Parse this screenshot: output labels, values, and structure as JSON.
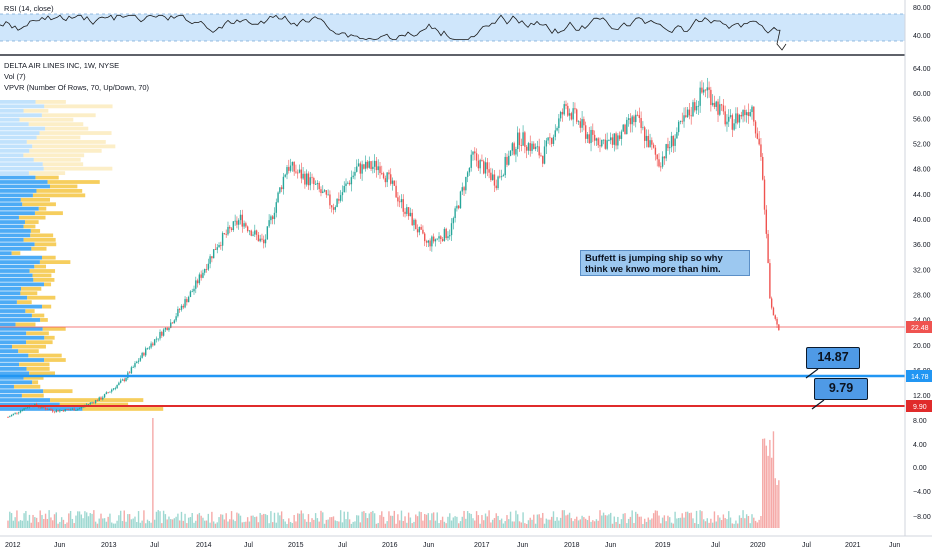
{
  "rsi_pane": {
    "label": "RSI (14, close)",
    "ticks": [
      "80.00",
      "40.00"
    ],
    "band_color": "#cfe6fb",
    "line_color": "#1a1a1a"
  },
  "price_pane": {
    "title": "DELTA AIR LINES INC, 1W, NYSE",
    "sub_label_1": "Vol (7)",
    "sub_label_2": "VPVR (Number Of Rows, 70, Up/Down, 70)",
    "ticks": [
      "64.00",
      "60.00",
      "56.00",
      "52.00",
      "48.00",
      "44.00",
      "40.00",
      "36.00",
      "32.00",
      "28.00",
      "24.00",
      "20.00",
      "16.00",
      "12.00",
      "8.00"
    ],
    "up_color": "#26a69a",
    "down_color": "#ef5350"
  },
  "volume_pane": {
    "ticks": [
      "4.00",
      "0.00",
      "−4.00",
      "−8.00"
    ]
  },
  "annotations": {
    "note": "Buffett is jumping ship so why think we knwo more than him.",
    "flag_upper": "14.87",
    "flag_lower": "9.79",
    "hline_current": "22.48",
    "hline_blue": "14.78",
    "hline_red": "9.90",
    "hline_current_color": "#ef5350",
    "hline_blue_color": "#2196f3",
    "hline_red_color": "#e02b2b"
  },
  "chart_data": {
    "type": "candlestick",
    "title": "DELTA AIR LINES INC, 1W, NYSE",
    "x_tick_labels": [
      "2012",
      "Jun",
      "2013",
      "Jul",
      "2014",
      "Jul",
      "2015",
      "Jul",
      "2016",
      "Jun",
      "2017",
      "Jun",
      "2018",
      "Jun",
      "2019",
      "Jul",
      "2020",
      "Jul",
      "2021",
      "Jun"
    ],
    "y_range": [
      6,
      68
    ],
    "price_path": [
      {
        "x": 2012.0,
        "y": 8.5
      },
      {
        "x": 2012.25,
        "y": 10.5
      },
      {
        "x": 2012.5,
        "y": 9.5
      },
      {
        "x": 2012.75,
        "y": 9.8
      },
      {
        "x": 2013.0,
        "y": 11.5
      },
      {
        "x": 2013.25,
        "y": 14.5
      },
      {
        "x": 2013.5,
        "y": 19.5
      },
      {
        "x": 2013.75,
        "y": 23.5
      },
      {
        "x": 2014.0,
        "y": 29.0
      },
      {
        "x": 2014.25,
        "y": 36.0
      },
      {
        "x": 2014.5,
        "y": 40.0
      },
      {
        "x": 2014.75,
        "y": 36.0
      },
      {
        "x": 2015.0,
        "y": 48.5
      },
      {
        "x": 2015.25,
        "y": 46.0
      },
      {
        "x": 2015.5,
        "y": 42.0
      },
      {
        "x": 2015.75,
        "y": 48.0
      },
      {
        "x": 2016.0,
        "y": 48.5
      },
      {
        "x": 2016.25,
        "y": 42.0
      },
      {
        "x": 2016.5,
        "y": 36.0
      },
      {
        "x": 2016.75,
        "y": 38.0
      },
      {
        "x": 2017.0,
        "y": 50.0
      },
      {
        "x": 2017.25,
        "y": 46.0
      },
      {
        "x": 2017.5,
        "y": 53.0
      },
      {
        "x": 2017.75,
        "y": 50.0
      },
      {
        "x": 2018.0,
        "y": 58.0
      },
      {
        "x": 2018.25,
        "y": 53.0
      },
      {
        "x": 2018.5,
        "y": 52.0
      },
      {
        "x": 2018.75,
        "y": 56.0
      },
      {
        "x": 2019.0,
        "y": 49.0
      },
      {
        "x": 2019.25,
        "y": 55.0
      },
      {
        "x": 2019.5,
        "y": 61.0
      },
      {
        "x": 2019.75,
        "y": 55.0
      },
      {
        "x": 2020.0,
        "y": 58.0
      },
      {
        "x": 2020.1,
        "y": 50.0
      },
      {
        "x": 2020.2,
        "y": 26.0
      },
      {
        "x": 2020.3,
        "y": 22.48
      }
    ]
  }
}
